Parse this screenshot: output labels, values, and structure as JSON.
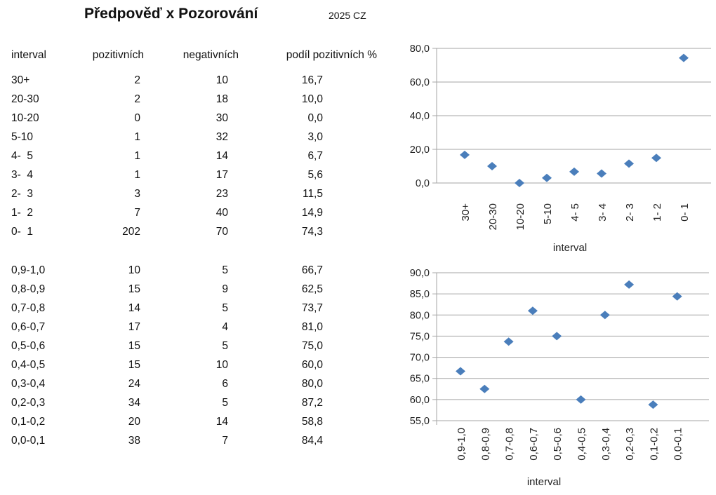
{
  "header": {
    "title": "Předpověď x Pozorování",
    "subtitle": "2025 CZ"
  },
  "table": {
    "columns": [
      "interval",
      "pozitivních",
      "negativních",
      "podíl pozitivních %"
    ],
    "rows1": [
      [
        "30+",
        "2",
        "10",
        "16,7"
      ],
      [
        "20-30",
        "2",
        "18",
        "10,0"
      ],
      [
        "10-20",
        "0",
        "30",
        "0,0"
      ],
      [
        "5-10",
        "1",
        "32",
        "3,0"
      ],
      [
        "4-  5",
        "1",
        "14",
        "6,7"
      ],
      [
        "3-  4",
        "1",
        "17",
        "5,6"
      ],
      [
        "2-  3",
        "3",
        "23",
        "11,5"
      ],
      [
        "1-  2",
        "7",
        "40",
        "14,9"
      ],
      [
        "0-  1",
        "202",
        "70",
        "74,3"
      ]
    ],
    "rows2": [
      [
        "0,9-1,0",
        "10",
        "5",
        "66,7"
      ],
      [
        "0,8-0,9",
        "15",
        "9",
        "62,5"
      ],
      [
        "0,7-0,8",
        "14",
        "5",
        "73,7"
      ],
      [
        "0,6-0,7",
        "17",
        "4",
        "81,0"
      ],
      [
        "0,5-0,6",
        "15",
        "5",
        "75,0"
      ],
      [
        "0,4-0,5",
        "15",
        "10",
        "60,0"
      ],
      [
        "0,3-0,4",
        "24",
        "6",
        "80,0"
      ],
      [
        "0,2-0,3",
        "34",
        "5",
        "87,2"
      ],
      [
        "0,1-0,2",
        "20",
        "14",
        "58,8"
      ],
      [
        "0,0-0,1",
        "38",
        "7",
        "84,4"
      ]
    ]
  },
  "chart_data": [
    {
      "type": "scatter",
      "categories": [
        "30+",
        "20-30",
        "10-20",
        "5-10",
        "4- 5",
        "3- 4",
        "2- 3",
        "1- 2",
        "0- 1"
      ],
      "values": [
        16.7,
        10.0,
        0.0,
        3.0,
        6.7,
        5.6,
        11.5,
        14.9,
        74.3
      ],
      "xlabel": "interval",
      "ylabel": "",
      "ylim": [
        0,
        80
      ],
      "yticks": [
        "0,0",
        "20,0",
        "40,0",
        "60,0",
        "80,0"
      ],
      "ytick_values": [
        0,
        20,
        40,
        60,
        80
      ],
      "grid": true,
      "marker_color": "#4a7ebb"
    },
    {
      "type": "scatter",
      "categories": [
        "0,9-1,0",
        "0,8-0,9",
        "0,7-0,8",
        "0,6-0,7",
        "0,5-0,6",
        "0,4-0,5",
        "0,3-0,4",
        "0,2-0,3",
        "0,1-0,2",
        "0,0-0,1"
      ],
      "values": [
        66.7,
        62.5,
        73.7,
        81.0,
        75.0,
        60.0,
        80.0,
        87.2,
        58.8,
        84.4
      ],
      "xlabel": "interval",
      "ylabel": "",
      "ylim": [
        55,
        90
      ],
      "yticks": [
        "55,0",
        "60,0",
        "65,0",
        "70,0",
        "75,0",
        "80,0",
        "85,0",
        "90,0"
      ],
      "ytick_values": [
        55,
        60,
        65,
        70,
        75,
        80,
        85,
        90
      ],
      "grid": true,
      "marker_color": "#4a7ebb"
    }
  ]
}
